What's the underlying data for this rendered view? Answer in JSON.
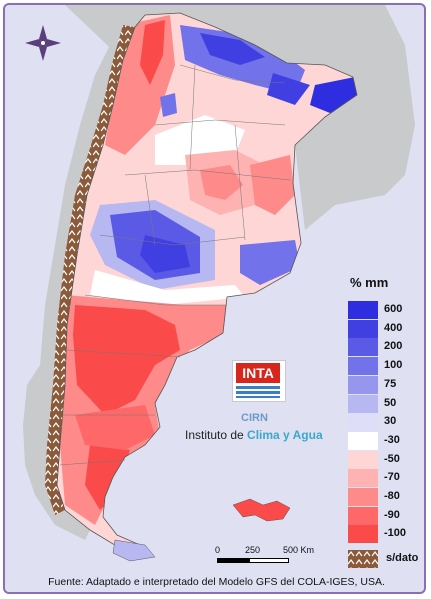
{
  "legend": {
    "unit": "% mm",
    "classes": [
      {
        "label": "600",
        "color": "#2e2ee0"
      },
      {
        "label": "400",
        "color": "#4040e2"
      },
      {
        "label": "200",
        "color": "#5a5ae6"
      },
      {
        "label": "100",
        "color": "#7272ea"
      },
      {
        "label": "75",
        "color": "#9696ee"
      },
      {
        "label": "50",
        "color": "#b7b7f2"
      },
      {
        "label": "30",
        "color": "#dedef9"
      },
      {
        "label": "-30",
        "color": "#ffffff"
      },
      {
        "label": "-50",
        "color": "#ffd6d6"
      },
      {
        "label": "-70",
        "color": "#ffb2b2"
      },
      {
        "label": "-80",
        "color": "#ff8a8a"
      },
      {
        "label": "-90",
        "color": "#ff6868"
      },
      {
        "label": "-100",
        "color": "#fb4a4a"
      }
    ],
    "no_data_label": "s/dato"
  },
  "branding": {
    "logo_text": "INTA",
    "unit_text": "CIRN",
    "institute_prefix": "Instituto de ",
    "institute_accent": "Clima y Agua"
  },
  "scale_bar": {
    "labels": [
      "0",
      "250",
      "500 Km"
    ]
  },
  "source": "Fuente: Adaptado e interpretado del Modelo GFS del COLA-IGES, USA.",
  "colors": {
    "ocean": "#dfe1f3",
    "neighbor_land": "#c9cacb",
    "border": "#8a6fb8",
    "brand_red": "#d9261c",
    "accent_blue": "#3aa8c8",
    "no_data": "#8a5a3a"
  }
}
